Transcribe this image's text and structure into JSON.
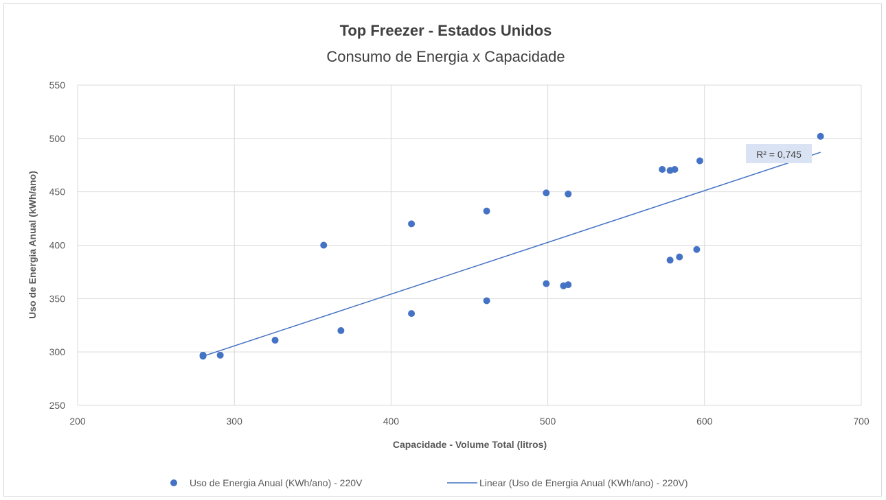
{
  "chart_data": {
    "type": "scatter",
    "title": "Top Freezer - Estados Unidos",
    "subtitle": "Consumo de Energia x Capacidade",
    "xlabel": "Capacidade  - Volume Total (litros)",
    "ylabel": "Uso de Energia Anual  (kWh/ano)",
    "xlim": [
      200,
      700
    ],
    "ylim": [
      250,
      550
    ],
    "xticks": [
      200,
      300,
      400,
      500,
      600,
      700
    ],
    "yticks": [
      250,
      300,
      350,
      400,
      450,
      500,
      550
    ],
    "grid": true,
    "legend_position": "bottom",
    "series": [
      {
        "name": "Uso de Energia Anual (KWh/ano) - 220V",
        "color": "#4472c4",
        "points": [
          [
            280,
            297
          ],
          [
            280,
            296
          ],
          [
            291,
            297
          ],
          [
            326,
            311
          ],
          [
            357,
            400
          ],
          [
            368,
            320
          ],
          [
            413,
            420
          ],
          [
            413,
            336
          ],
          [
            461,
            432
          ],
          [
            461,
            348
          ],
          [
            499,
            449
          ],
          [
            499,
            364
          ],
          [
            510,
            362
          ],
          [
            513,
            363
          ],
          [
            513,
            448
          ],
          [
            573,
            471
          ],
          [
            578,
            470
          ],
          [
            578,
            386
          ],
          [
            581,
            471
          ],
          [
            584,
            389
          ],
          [
            595,
            396
          ],
          [
            597,
            479
          ],
          [
            674,
            502
          ]
        ]
      }
    ],
    "trendline": {
      "name": "Linear (Uso de Energia Anual (KWh/ano) - 220V)",
      "color": "#4472c4",
      "x_range": [
        280,
        674
      ],
      "y_range": [
        296,
        487
      ],
      "r2_label": "R² = 0,745"
    }
  }
}
